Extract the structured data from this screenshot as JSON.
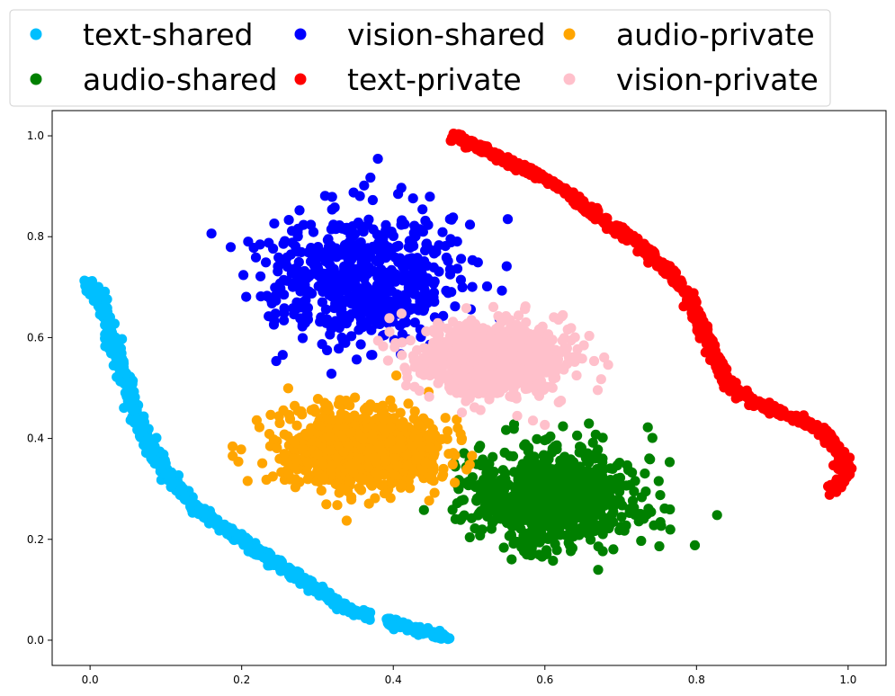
{
  "chart_data": {
    "type": "scatter",
    "title": "",
    "xlabel": "",
    "ylabel": "",
    "xlim": [
      -0.05,
      1.05
    ],
    "ylim": [
      -0.05,
      1.05
    ],
    "x_ticks": [
      "0.0",
      "0.2",
      "0.4",
      "0.6",
      "0.8",
      "1.0"
    ],
    "y_ticks": [
      "0.0",
      "0.2",
      "0.4",
      "0.6",
      "0.8",
      "1.0"
    ],
    "grid": false,
    "legend": {
      "placement": "top-center, above plot",
      "columns": 3,
      "order": [
        "text-shared",
        "audio-shared",
        "vision-shared",
        "text-private",
        "audio-private",
        "vision-private"
      ]
    },
    "series": [
      {
        "name": "text-shared",
        "color": "#00bfff",
        "shape": "curve",
        "path": [
          [
            0.0,
            0.71
          ],
          [
            0.02,
            0.65
          ],
          [
            0.04,
            0.55
          ],
          [
            0.06,
            0.45
          ],
          [
            0.08,
            0.38
          ],
          [
            0.11,
            0.31
          ],
          [
            0.15,
            0.25
          ],
          [
            0.2,
            0.2
          ],
          [
            0.26,
            0.14
          ],
          [
            0.33,
            0.07
          ],
          [
            0.37,
            0.045
          ],
          [
            0.42,
            0.025
          ],
          [
            0.47,
            0.005
          ]
        ],
        "gap": [
          0.37,
          0.39
        ],
        "count": 900
      },
      {
        "name": "text-private",
        "color": "#ff0000",
        "shape": "curve",
        "path": [
          [
            0.48,
            1.0
          ],
          [
            0.55,
            0.95
          ],
          [
            0.62,
            0.9
          ],
          [
            0.67,
            0.84
          ],
          [
            0.72,
            0.79
          ],
          [
            0.76,
            0.74
          ],
          [
            0.79,
            0.68
          ],
          [
            0.81,
            0.61
          ],
          [
            0.84,
            0.51
          ],
          [
            0.88,
            0.47
          ],
          [
            0.93,
            0.44
          ],
          [
            0.97,
            0.41
          ],
          [
            0.99,
            0.37
          ],
          [
            0.995,
            0.33
          ],
          [
            0.98,
            0.29
          ]
        ],
        "count": 900
      },
      {
        "name": "vision-shared",
        "color": "#0000ff",
        "shape": "cluster",
        "center": [
          0.36,
          0.72
        ],
        "spread": [
          0.065,
          0.062
        ],
        "count": 650
      },
      {
        "name": "audio-shared",
        "color": "#008000",
        "shape": "cluster",
        "center": [
          0.61,
          0.28
        ],
        "spread": [
          0.055,
          0.05
        ],
        "count": 800
      },
      {
        "name": "audio-private",
        "color": "#ffa500",
        "shape": "cluster",
        "center": [
          0.36,
          0.38
        ],
        "spread": [
          0.055,
          0.04
        ],
        "count": 900
      },
      {
        "name": "vision-private",
        "color": "#ffc0cb",
        "shape": "cluster",
        "center": [
          0.53,
          0.56
        ],
        "spread": [
          0.05,
          0.036
        ],
        "count": 900
      }
    ]
  }
}
